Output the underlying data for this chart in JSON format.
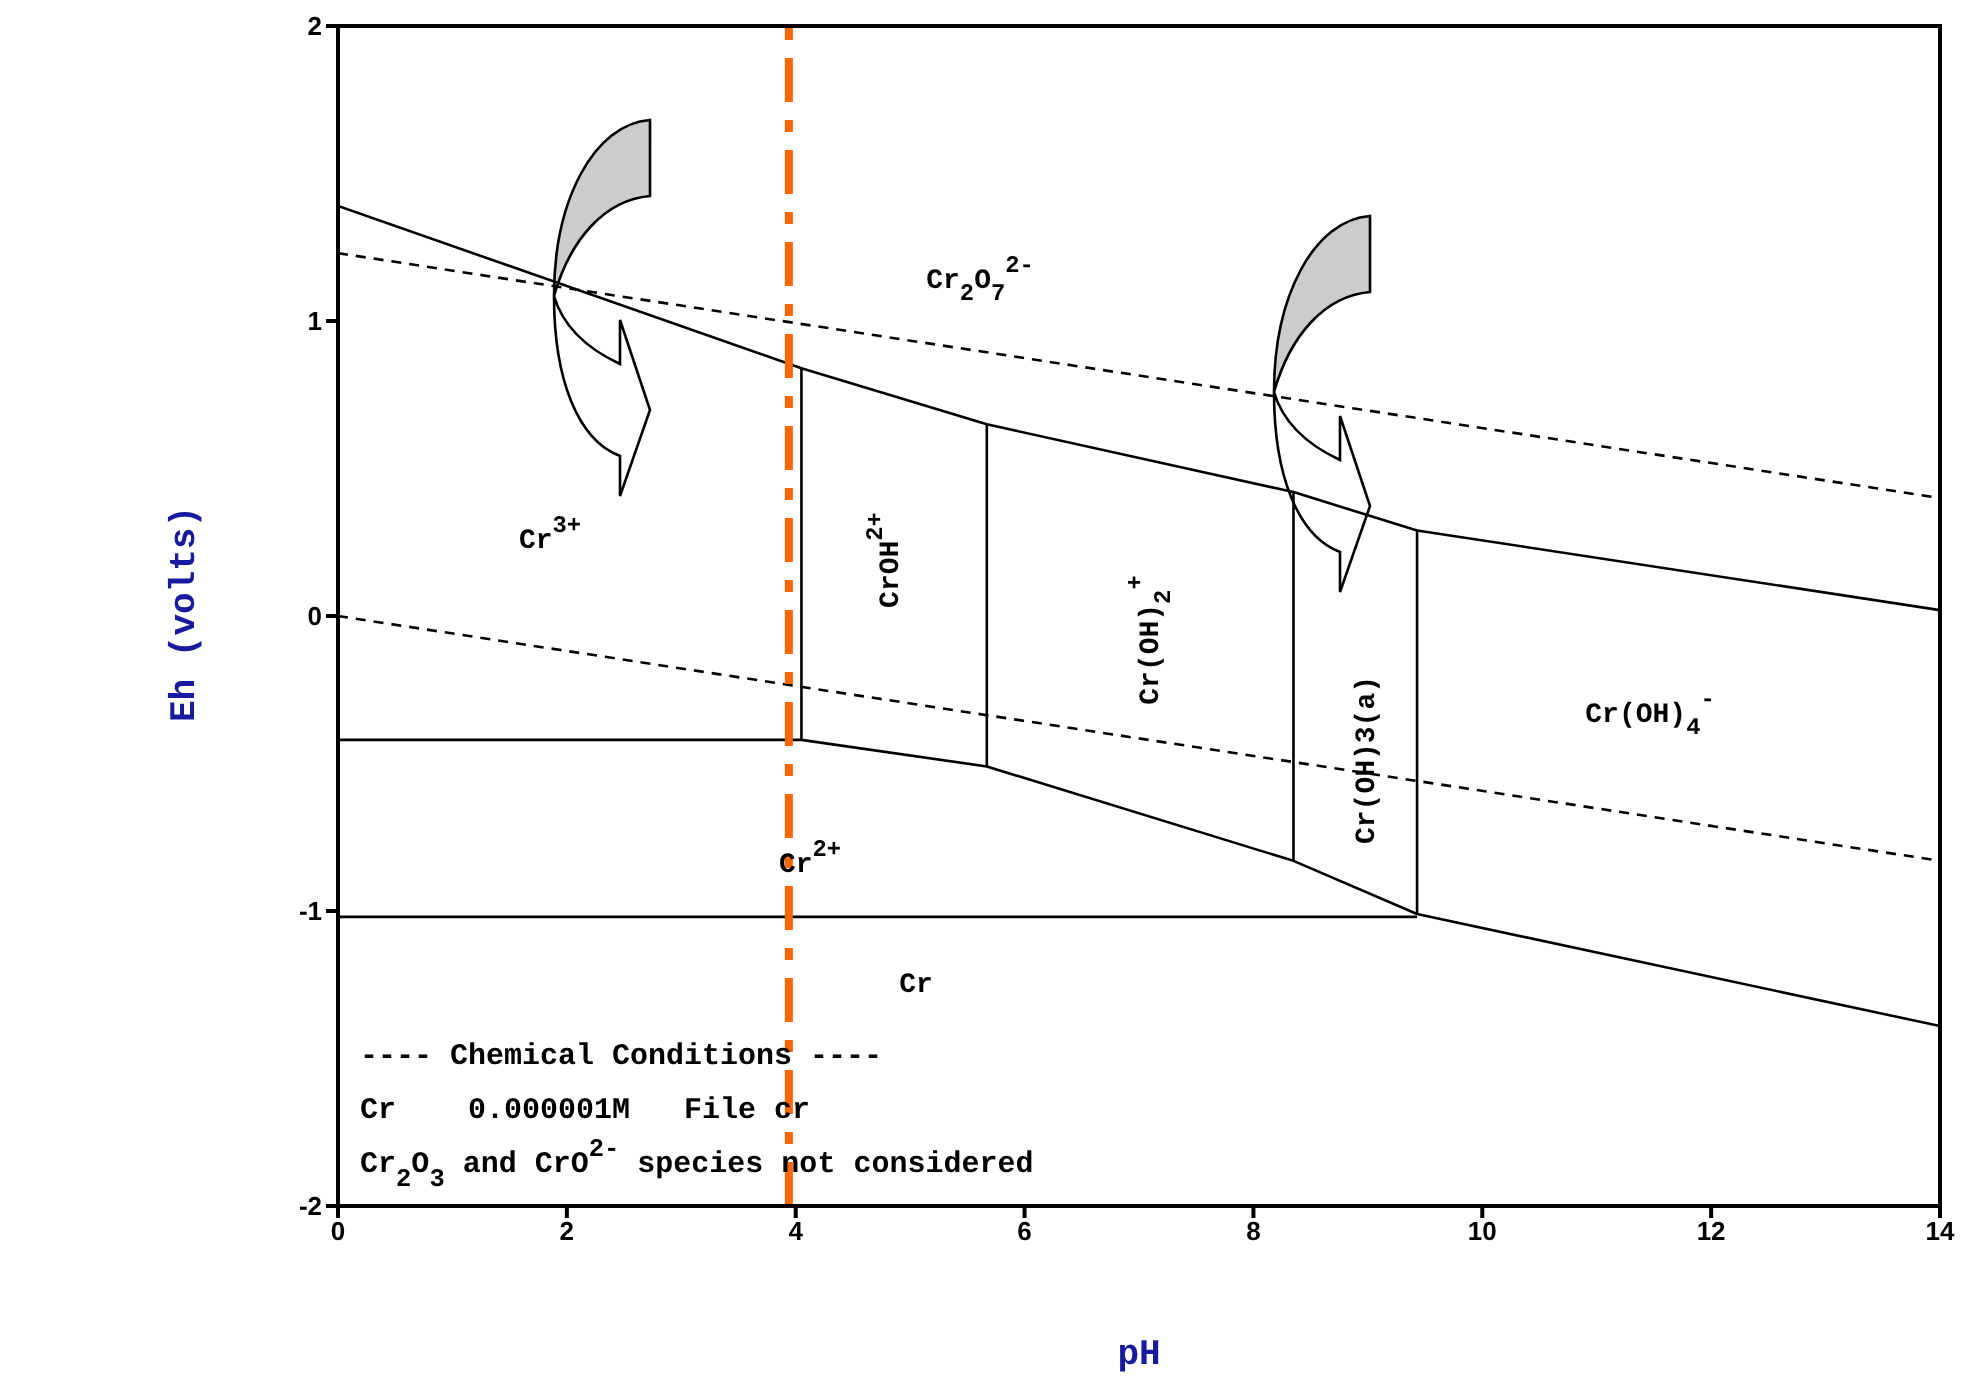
{
  "chart_data": {
    "type": "line",
    "xlabel": "pH",
    "ylabel": "Eh (volts)",
    "xlim": [
      0,
      14
    ],
    "ylim": [
      -2,
      2
    ],
    "xticks": [
      0,
      2,
      4,
      6,
      8,
      10,
      12,
      14
    ],
    "yticks": [
      -2,
      -1,
      0,
      1,
      2
    ],
    "marker": "none",
    "series": [
      {
        "color": "#000000",
        "line_style": "solid",
        "x": [
          0,
          4.05,
          5.67,
          8.35,
          9.43,
          14
        ],
        "values": [
          1.39,
          0.84,
          0.65,
          0.42,
          0.29,
          0.02
        ]
      },
      {
        "color": "#000000",
        "line_style": "solid",
        "x": [
          0,
          4.05,
          5.67,
          8.35,
          9.43,
          14
        ],
        "values": [
          -0.42,
          -0.42,
          -0.51,
          -0.83,
          -1.01,
          -1.39
        ]
      },
      {
        "color": "#000000",
        "line_style": "solid",
        "x": [
          0,
          9.43
        ],
        "values": [
          -1.02,
          -1.02
        ]
      },
      {
        "color": "#000000",
        "line_style": "solid",
        "x": [
          4.05,
          4.05
        ],
        "values": [
          0.84,
          -0.42
        ]
      },
      {
        "color": "#000000",
        "line_style": "solid",
        "x": [
          5.67,
          5.67
        ],
        "values": [
          0.65,
          -0.51
        ]
      },
      {
        "color": "#000000",
        "line_style": "solid",
        "x": [
          8.35,
          8.35
        ],
        "values": [
          0.42,
          -0.83
        ]
      },
      {
        "color": "#000000",
        "line_style": "solid",
        "x": [
          9.43,
          9.43
        ],
        "values": [
          0.29,
          -1.01
        ]
      },
      {
        "color": "#000000",
        "line_style": "dashed",
        "x": [
          0,
          14
        ],
        "values": [
          1.23,
          0.4
        ]
      },
      {
        "color": "#000000",
        "line_style": "dashed",
        "x": [
          0,
          14
        ],
        "values": [
          0,
          -0.83
        ]
      }
    ],
    "ref_lines": [
      {
        "axis": "x",
        "value": 3.94,
        "color": "#ff6600",
        "line_style": "dashed"
      }
    ],
    "annotations": [
      "Cr$^{3+}$",
      "Cr$_{2}$O$_{7}$$^{2-}$",
      "CrOH$^{2+}$",
      "Cr(OH)$_{2}$$^{+}$",
      "Cr(OH)3(a)",
      "Cr(OH)$_{4}$$^{-}$",
      "Cr$^{2+}$",
      "Cr",
      "---- Chemical Conditions ----",
      "Cr    0.000001M   File cr",
      "Cr$_{2}$O$_{3}$ and CrO$^{2-}$ species not considered"
    ]
  }
}
